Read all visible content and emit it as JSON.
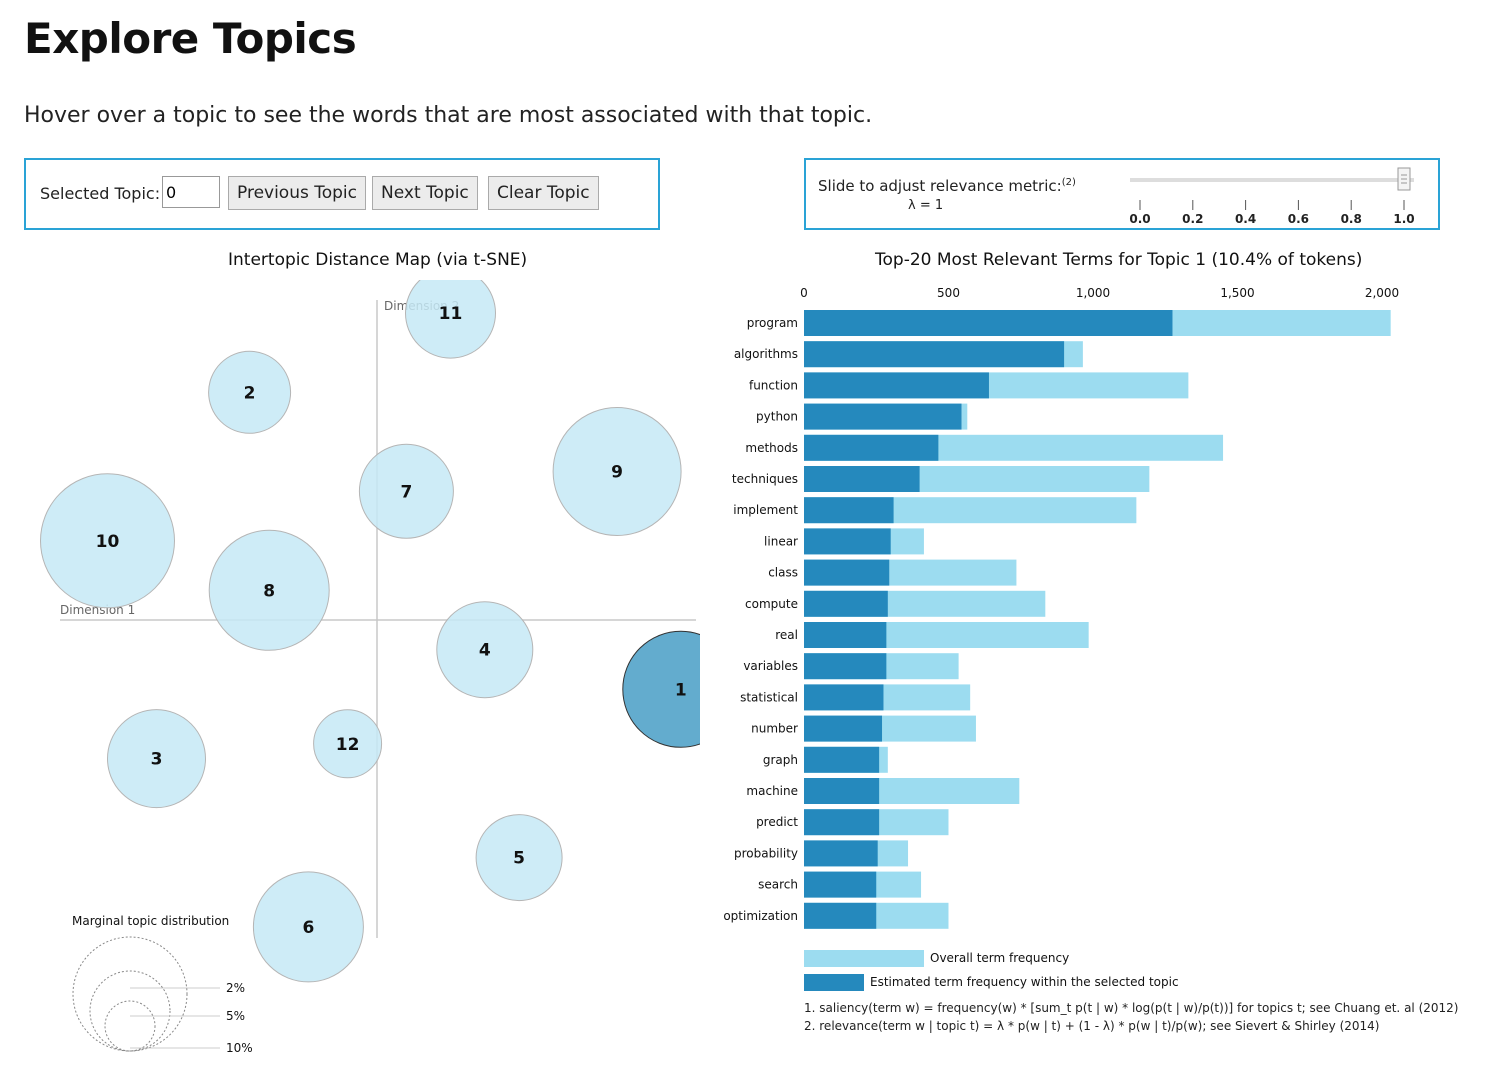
{
  "page": {
    "title": "Explore Topics",
    "subtitle": "Hover over a topic to see the words that are most associated with that topic."
  },
  "controls": {
    "selected_topic_label": "Selected Topic:",
    "selected_topic_value": "0",
    "previous_label": "Previous Topic",
    "next_label": "Next Topic",
    "clear_label": "Clear Topic"
  },
  "relevance": {
    "label": "Slide to adjust relevance metric:",
    "footnote_ref": "(2)",
    "lambda_label": "λ = 1",
    "lambda_value": 1,
    "ticks": [
      "0.0",
      "0.2",
      "0.4",
      "0.6",
      "0.8",
      "1.0"
    ]
  },
  "mds": {
    "title": "Intertopic Distance Map (via t-SNE)",
    "axis_x_label": "Dimension 1",
    "axis_y_label": "Dimension 2",
    "selected_topic": "1",
    "topics": [
      {
        "id": "1",
        "x": 6.2,
        "y": -1.4,
        "r": 58
      },
      {
        "id": "2",
        "x": -2.6,
        "y": 4.6,
        "r": 41
      },
      {
        "id": "3",
        "x": -4.5,
        "y": -2.8,
        "r": 49
      },
      {
        "id": "4",
        "x": 2.2,
        "y": -0.6,
        "r": 48
      },
      {
        "id": "5",
        "x": 2.9,
        "y": -4.8,
        "r": 43
      },
      {
        "id": "6",
        "x": -1.4,
        "y": -6.2,
        "r": 55
      },
      {
        "id": "7",
        "x": 0.6,
        "y": 2.6,
        "r": 47
      },
      {
        "id": "8",
        "x": -2.2,
        "y": 0.6,
        "r": 60
      },
      {
        "id": "9",
        "x": 4.9,
        "y": 3.0,
        "r": 64
      },
      {
        "id": "10",
        "x": -5.5,
        "y": 1.6,
        "r": 67
      },
      {
        "id": "11",
        "x": 1.5,
        "y": 6.2,
        "r": 45
      },
      {
        "id": "12",
        "x": -0.6,
        "y": -2.5,
        "r": 34
      }
    ],
    "legend": {
      "title": "Marginal topic distribution",
      "entries": [
        {
          "label": "2%",
          "r": 25
        },
        {
          "label": "5%",
          "r": 40
        },
        {
          "label": "10%",
          "r": 57
        }
      ]
    }
  },
  "chart_data": {
    "type": "bar",
    "title": "Top-20 Most Relevant Terms for Topic 1 (10.4% of tokens)",
    "orientation": "horizontal",
    "categories": [
      "program",
      "algorithms",
      "function",
      "python",
      "methods",
      "techniques",
      "implement",
      "linear",
      "class",
      "compute",
      "real",
      "variables",
      "statistical",
      "number",
      "graph",
      "machine",
      "predict",
      "probability",
      "search",
      "optimization"
    ],
    "series": [
      {
        "name": "Overall term frequency",
        "color": "#9cdcf0",
        "values": [
          2030,
          965,
          1330,
          565,
          1450,
          1195,
          1150,
          415,
          735,
          835,
          985,
          535,
          575,
          595,
          290,
          745,
          500,
          360,
          405,
          500
        ]
      },
      {
        "name": "Estimated term frequency within the selected topic",
        "color": "#2589bd",
        "values": [
          1275,
          900,
          640,
          545,
          465,
          400,
          310,
          300,
          295,
          290,
          285,
          285,
          275,
          270,
          260,
          260,
          260,
          255,
          250,
          250
        ]
      }
    ],
    "xticks": [
      "0",
      "500",
      "1,000",
      "1,500",
      "2,000"
    ],
    "xlim": [
      0,
      2000
    ]
  },
  "footnotes": {
    "f1": "1. saliency(term w) = frequency(w) * [sum_t p(t | w) * log(p(t | w)/p(t))] for topics t; see Chuang et. al (2012)",
    "f2": "2. relevance(term w | topic t) = λ * p(w | t) + (1 - λ) * p(w | t)/p(w); see Sievert & Shirley (2014)"
  }
}
